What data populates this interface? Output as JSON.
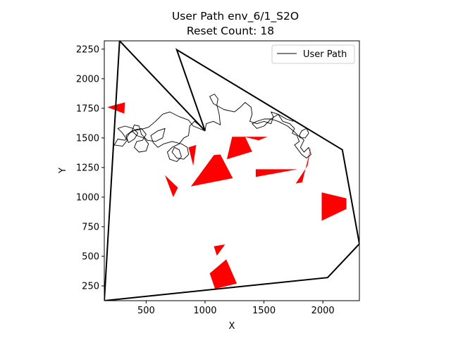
{
  "chart_data": {
    "type": "line",
    "title": "User Path env_6/1_S2O",
    "subtitle": "Reset Count: 18",
    "xlabel": "X",
    "ylabel": "Y",
    "xlim": [
      145,
      2310
    ],
    "ylim": [
      125,
      2320
    ],
    "xticks": [
      500,
      1000,
      1500,
      2000
    ],
    "yticks": [
      250,
      500,
      750,
      1000,
      1250,
      1500,
      1750,
      2000,
      2250
    ],
    "grid": false,
    "legend": {
      "position": "top-right",
      "entries": [
        "User Path"
      ]
    },
    "colors": {
      "boundary": "#000000",
      "obstacle": "#ff0000",
      "path": "#000000"
    },
    "boundary": [
      [
        145,
        125
      ],
      [
        2040,
        320
      ],
      [
        2310,
        605
      ],
      [
        2165,
        1400
      ],
      [
        760,
        2245
      ],
      [
        1000,
        1560
      ],
      [
        275,
        2320
      ],
      [
        145,
        125
      ]
    ],
    "obstacles": [
      [
        [
          170,
          1760
        ],
        [
          320,
          1800
        ],
        [
          315,
          1705
        ]
      ],
      [
        [
          860,
          1420
        ],
        [
          925,
          1440
        ],
        [
          900,
          1265
        ]
      ],
      [
        [
          660,
          1185
        ],
        [
          770,
          1080
        ],
        [
          730,
          1000
        ]
      ],
      [
        [
          880,
          1090
        ],
        [
          1235,
          1160
        ],
        [
          1130,
          1360
        ],
        [
          1075,
          1355
        ]
      ],
      [
        [
          1185,
          1320
        ],
        [
          1400,
          1385
        ],
        [
          1340,
          1510
        ],
        [
          1230,
          1510
        ]
      ],
      [
        [
          1330,
          1510
        ],
        [
          1530,
          1510
        ],
        [
          1455,
          1480
        ]
      ],
      [
        [
          1430,
          1235
        ],
        [
          1785,
          1235
        ],
        [
          1430,
          1170
        ]
      ],
      [
        [
          1770,
          1115
        ],
        [
          1870,
          1265
        ],
        [
          1900,
          1430
        ],
        [
          1825,
          1125
        ]
      ],
      [
        [
          1990,
          1040
        ],
        [
          2200,
          990
        ],
        [
          2200,
          900
        ],
        [
          1990,
          800
        ]
      ],
      [
        [
          1040,
          355
        ],
        [
          1180,
          475
        ],
        [
          1270,
          270
        ],
        [
          1085,
          225
        ]
      ],
      [
        [
          1075,
          585
        ],
        [
          1170,
          600
        ],
        [
          1100,
          505
        ]
      ]
    ],
    "user_path": [
      [
        1000,
        1560
      ],
      [
        960,
        1600
      ],
      [
        910,
        1640
      ],
      [
        870,
        1600
      ],
      [
        860,
        1520
      ],
      [
        820,
        1500
      ],
      [
        780,
        1450
      ],
      [
        720,
        1420
      ],
      [
        680,
        1380
      ],
      [
        700,
        1320
      ],
      [
        760,
        1300
      ],
      [
        800,
        1340
      ],
      [
        780,
        1400
      ],
      [
        740,
        1420
      ],
      [
        720,
        1380
      ],
      [
        760,
        1330
      ],
      [
        820,
        1320
      ],
      [
        860,
        1360
      ],
      [
        850,
        1420
      ],
      [
        800,
        1450
      ],
      [
        720,
        1470
      ],
      [
        650,
        1450
      ],
      [
        600,
        1420
      ],
      [
        560,
        1460
      ],
      [
        540,
        1520
      ],
      [
        600,
        1560
      ],
      [
        660,
        1580
      ],
      [
        640,
        1500
      ],
      [
        580,
        1470
      ],
      [
        510,
        1480
      ],
      [
        460,
        1530
      ],
      [
        440,
        1600
      ],
      [
        400,
        1610
      ],
      [
        380,
        1560
      ],
      [
        420,
        1520
      ],
      [
        480,
        1500
      ],
      [
        520,
        1450
      ],
      [
        500,
        1390
      ],
      [
        440,
        1380
      ],
      [
        400,
        1420
      ],
      [
        420,
        1470
      ],
      [
        470,
        1480
      ],
      [
        500,
        1530
      ],
      [
        460,
        1580
      ],
      [
        410,
        1570
      ],
      [
        360,
        1540
      ],
      [
        320,
        1480
      ],
      [
        260,
        1490
      ],
      [
        230,
        1440
      ],
      [
        300,
        1430
      ],
      [
        340,
        1480
      ],
      [
        300,
        1540
      ],
      [
        260,
        1580
      ],
      [
        320,
        1600
      ],
      [
        390,
        1580
      ],
      [
        430,
        1540
      ],
      [
        400,
        1490
      ],
      [
        350,
        1460
      ],
      [
        330,
        1520
      ],
      [
        380,
        1560
      ],
      [
        450,
        1570
      ],
      [
        520,
        1590
      ],
      [
        580,
        1640
      ],
      [
        640,
        1700
      ],
      [
        700,
        1720
      ],
      [
        780,
        1680
      ],
      [
        860,
        1650
      ],
      [
        900,
        1600
      ],
      [
        1000,
        1560
      ],
      [
        1010,
        1620
      ],
      [
        1070,
        1640
      ],
      [
        1130,
        1610
      ],
      [
        1120,
        1700
      ],
      [
        1100,
        1780
      ],
      [
        1110,
        1830
      ],
      [
        1080,
        1870
      ],
      [
        1040,
        1850
      ],
      [
        1070,
        1790
      ],
      [
        1160,
        1740
      ],
      [
        1250,
        1720
      ],
      [
        1300,
        1760
      ],
      [
        1340,
        1800
      ],
      [
        1390,
        1760
      ],
      [
        1400,
        1700
      ],
      [
        1380,
        1640
      ],
      [
        1440,
        1620
      ],
      [
        1500,
        1640
      ],
      [
        1560,
        1620
      ],
      [
        1580,
        1680
      ],
      [
        1560,
        1720
      ],
      [
        1620,
        1700
      ],
      [
        1660,
        1640
      ],
      [
        1720,
        1620
      ],
      [
        1760,
        1580
      ],
      [
        1740,
        1540
      ],
      [
        1780,
        1520
      ],
      [
        1800,
        1470
      ],
      [
        1760,
        1440
      ],
      [
        1790,
        1400
      ],
      [
        1820,
        1360
      ],
      [
        1860,
        1330
      ],
      [
        1900,
        1360
      ],
      [
        1880,
        1420
      ],
      [
        1840,
        1380
      ],
      [
        1810,
        1420
      ],
      [
        1840,
        1480
      ],
      [
        1800,
        1520
      ],
      [
        1820,
        1560
      ],
      [
        1860,
        1580
      ],
      [
        1880,
        1540
      ],
      [
        1850,
        1500
      ],
      [
        1810,
        1500
      ],
      [
        1760,
        1550
      ],
      [
        1700,
        1600
      ],
      [
        1620,
        1640
      ],
      [
        1560,
        1660
      ],
      [
        1500,
        1660
      ],
      [
        1440,
        1640
      ],
      [
        1400,
        1620
      ],
      [
        1440,
        1580
      ],
      [
        1500,
        1600
      ],
      [
        1560,
        1660
      ],
      [
        1620,
        1700
      ],
      [
        1690,
        1660
      ],
      [
        1750,
        1640
      ]
    ]
  }
}
